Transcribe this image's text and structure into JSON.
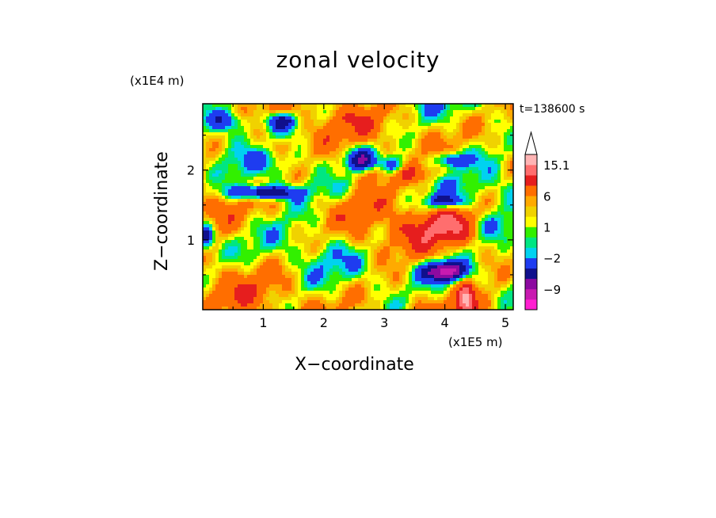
{
  "chart_data": {
    "type": "heatmap",
    "title": "zonal velocity",
    "xlabel": "X−coordinate",
    "ylabel": "Z−coordinate",
    "x_multiplier": "(x1E5 m)",
    "y_multiplier": "(x1E4 m)",
    "time_label": "t=138600 s",
    "xlim": [
      0,
      5.13
    ],
    "ylim": [
      0,
      2.95
    ],
    "x_ticks": [
      1,
      2,
      3,
      4,
      5
    ],
    "y_ticks": [
      1,
      2
    ],
    "x_tick_labels": [
      "1",
      "2",
      "3",
      "4",
      "5"
    ],
    "y_tick_labels": [
      "1",
      "2"
    ],
    "colorbar": {
      "levels": [
        -15,
        -12,
        -9,
        -6,
        -3,
        -2,
        -1,
        0,
        1,
        2,
        3,
        6,
        9,
        12,
        15.1
      ],
      "tick_labels": [
        "15.1",
        "6",
        "1",
        "−2",
        "−9"
      ],
      "colors": [
        "#ff1fd0",
        "#c81ab0",
        "#8c0aa0",
        "#10108c",
        "#1e3cf0",
        "#00d2f0",
        "#00e682",
        "#32f000",
        "#ffff00",
        "#f0d200",
        "#ffaa00",
        "#ff6e00",
        "#e61e1e",
        "#ff6e6e",
        "#ffb4b4",
        "#ffffff"
      ]
    }
  }
}
